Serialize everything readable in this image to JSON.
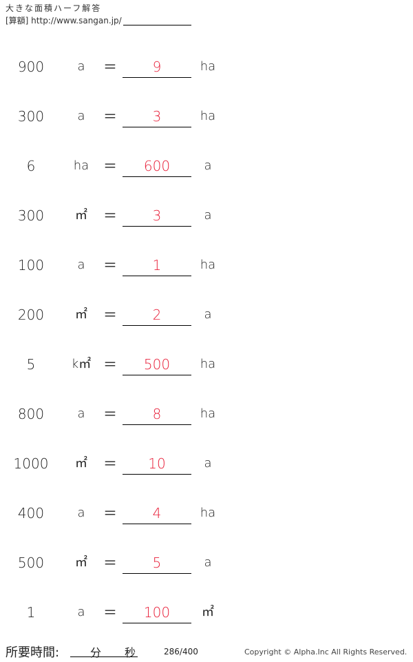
{
  "header": {
    "title": "大きな面積ハーフ解答",
    "url": "[算額] http://www.sangan.jp/"
  },
  "problems": [
    {
      "value": "900",
      "from": "a",
      "eq": "＝",
      "answer": "9",
      "to": "ha"
    },
    {
      "value": "300",
      "from": "a",
      "eq": "＝",
      "answer": "3",
      "to": "ha"
    },
    {
      "value": "6",
      "from": "ha",
      "eq": "＝",
      "answer": "600",
      "to": "a"
    },
    {
      "value": "300",
      "from": "㎡",
      "eq": "＝",
      "answer": "3",
      "to": "a"
    },
    {
      "value": "100",
      "from": "a",
      "eq": "＝",
      "answer": "1",
      "to": "ha"
    },
    {
      "value": "200",
      "from": "㎡",
      "eq": "＝",
      "answer": "2",
      "to": "a"
    },
    {
      "value": "5",
      "from": "k㎡",
      "eq": "＝",
      "answer": "500",
      "to": "ha"
    },
    {
      "value": "800",
      "from": "a",
      "eq": "＝",
      "answer": "8",
      "to": "ha"
    },
    {
      "value": "1000",
      "from": "㎡",
      "eq": "＝",
      "answer": "10",
      "to": "a"
    },
    {
      "value": "400",
      "from": "a",
      "eq": "＝",
      "answer": "4",
      "to": "ha"
    },
    {
      "value": "500",
      "from": "㎡",
      "eq": "＝",
      "answer": "5",
      "to": "a"
    },
    {
      "value": "1",
      "from": "a",
      "eq": "＝",
      "answer": "100",
      "to": "㎡"
    }
  ],
  "colors": {
    "answer": "#e8203a"
  },
  "footer": {
    "time_label": "所要時間:",
    "minutes": "分",
    "seconds": "秒",
    "page": "286/400",
    "copyright": "Copyright © Alpha.Inc All Rights Reserved."
  }
}
